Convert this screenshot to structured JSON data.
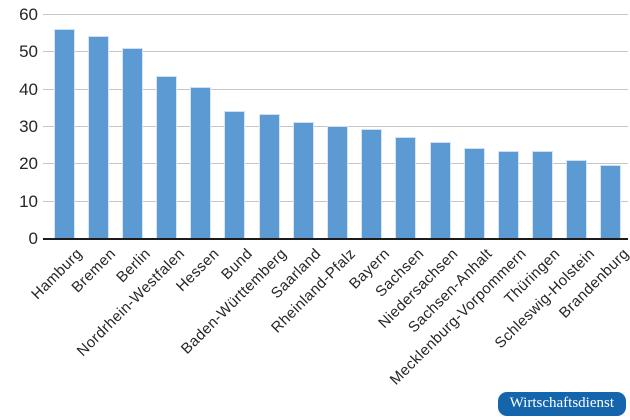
{
  "chart_data": {
    "type": "bar",
    "categories": [
      "Hamburg",
      "Bremen",
      "Berlin",
      "Nordrhein-Westfalen",
      "Hessen",
      "Bund",
      "Baden-Württemberg",
      "Saarland",
      "Rheinland-Pfalz",
      "Bayern",
      "Sachsen",
      "Niedersachsen",
      "Sachsen-Anhalt",
      "Mecklenburg-Vorpommern",
      "Thüringen",
      "Schleswig-Holstein",
      "Brandenburg"
    ],
    "values": [
      56,
      54,
      51,
      43.3,
      40.4,
      34,
      33.2,
      31.2,
      30,
      29.2,
      27.1,
      25.8,
      24,
      23.4,
      23.2,
      20.9,
      19.6
    ],
    "title": "",
    "xlabel": "",
    "ylabel": "",
    "ylim": [
      0,
      60
    ],
    "yticks": [
      0,
      10,
      20,
      30,
      40,
      50,
      60
    ],
    "grid": true,
    "legend": false,
    "bar_color": "#5b9ad3",
    "gridline_color": "#c6c6c6",
    "axis_color": "#1c1c1c",
    "tick_label_color": "#262626"
  },
  "source_badge": {
    "label": "Wirtschaftsdienst",
    "bg_color": "#1565ac",
    "text_color": "#ffffff"
  }
}
